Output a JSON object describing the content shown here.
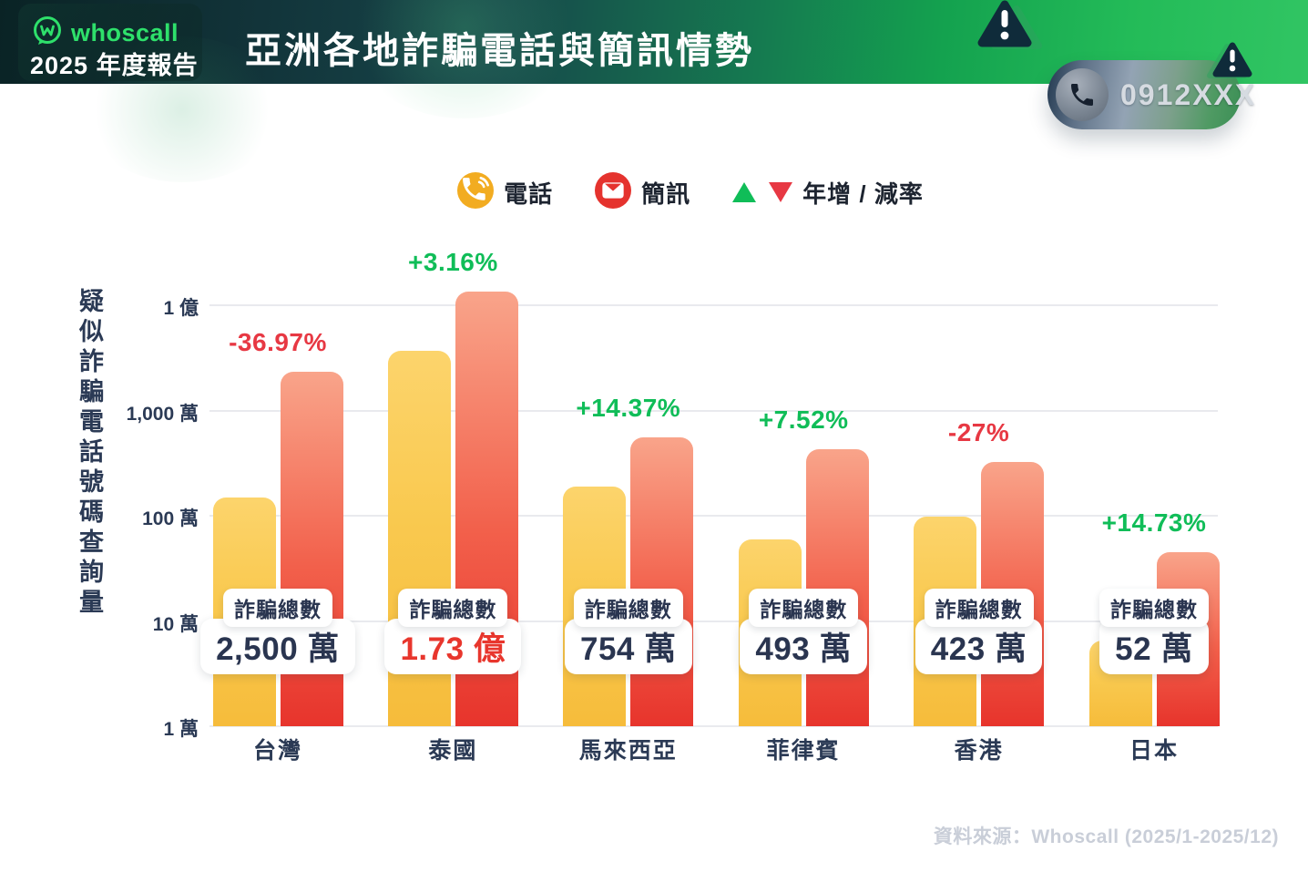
{
  "header": {
    "brand": "whoscall",
    "report_label": "2025 年度報告",
    "title": "亞洲各地詐騙電話與簡訊情勢",
    "phone_pill_number": "0912XXX"
  },
  "legend": {
    "phone_label": "電話",
    "sms_label": "簡訊",
    "yoy_label": "年增 / 減率"
  },
  "colors": {
    "up_green": "#10BD58",
    "down_red": "#E73843",
    "badge_text": "#2A3550",
    "badge_highlight": "#E8362D",
    "axis_text": "#2B3A55",
    "phone_icon_bg": "#F2AC21",
    "sms_icon_bg": "#E5332E"
  },
  "chart_data": {
    "type": "bar",
    "title": "亞洲各地詐騙電話與簡訊情勢",
    "scale": "log10",
    "grid": true,
    "legend_position": "top",
    "y_axis": {
      "label": "疑似詐騙電話號碼查詢量",
      "ticks": [
        "1 億",
        "1,000 萬",
        "100 萬",
        "10 萬",
        "1 萬"
      ],
      "min_wan": 1,
      "max_wan": 10000
    },
    "categories": [
      "台灣",
      "泰國",
      "馬來西亞",
      "菲律賓",
      "香港",
      "日本"
    ],
    "series": [
      {
        "name": "電話",
        "unit": "萬",
        "values": [
          150,
          3700,
          190,
          60,
          98,
          6.5
        ]
      },
      {
        "name": "簡訊",
        "unit": "萬",
        "values": [
          2350,
          13600,
          560,
          433,
          325,
          45.5
        ]
      }
    ],
    "totals": {
      "label": "詐騙總數",
      "values": [
        "2,500 萬",
        "1.73 億",
        "754 萬",
        "493 萬",
        "423 萬",
        "52 萬"
      ],
      "highlight_index": 1
    },
    "yoy": [
      "-36.97%",
      "+3.16%",
      "+14.37%",
      "+7.52%",
      "-27%",
      "+14.73%"
    ]
  },
  "source": "資料來源：Whoscall (2025/1-2025/12)"
}
